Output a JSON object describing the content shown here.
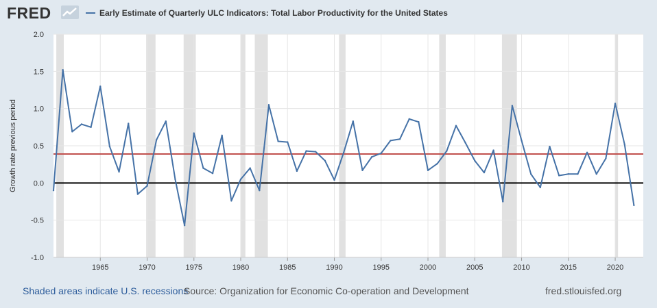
{
  "header": {
    "logo_text": "FRED",
    "legend_label": "Early Estimate of Quarterly ULC Indicators: Total Labor Productivity for the United States"
  },
  "footer": {
    "recession_note": "Shaded areas indicate U.S. recessions",
    "source": "Source: Organization for Economic Co-operation and Development",
    "site": "fred.stlouisfed.org"
  },
  "colors": {
    "series": "#4572a7",
    "reference_line": "#c0504d",
    "zero_line": "#000000",
    "recession": "#e1e1e1",
    "plot_bg": "#ffffff"
  },
  "chart_data": {
    "type": "line",
    "title": "Early Estimate of Quarterly ULC Indicators: Total Labor Productivity for the United States",
    "xlabel": "",
    "ylabel": "Growth rate previous period",
    "xlim": [
      1960,
      2023
    ],
    "ylim": [
      -1.0,
      2.0
    ],
    "x_ticks": [
      1965,
      1970,
      1975,
      1980,
      1985,
      1990,
      1995,
      2000,
      2005,
      2010,
      2015,
      2020
    ],
    "y_ticks": [
      -1.0,
      -0.5,
      0.0,
      0.5,
      1.0,
      1.5,
      2.0
    ],
    "y_tick_labels": [
      "-1.0",
      "-0.5",
      "0.0",
      "0.5",
      "1.0",
      "1.5",
      "2.0"
    ],
    "reference_line": 0.39,
    "zero_line": 0,
    "recessions": [
      [
        1960.3,
        1961.1
      ],
      [
        1969.9,
        1970.9
      ],
      [
        1973.9,
        1975.2
      ],
      [
        1980.0,
        1980.5
      ],
      [
        1981.5,
        1982.9
      ],
      [
        1990.5,
        1991.2
      ],
      [
        2001.2,
        2001.9
      ],
      [
        2007.9,
        2009.5
      ],
      [
        2020.0,
        2020.3
      ]
    ],
    "series": [
      {
        "name": "Early Estimate of Quarterly ULC Indicators: Total Labor Productivity for the United States",
        "x": [
          1960,
          1961,
          1962,
          1963,
          1964,
          1965,
          1966,
          1967,
          1968,
          1969,
          1970,
          1971,
          1972,
          1973,
          1974,
          1975,
          1976,
          1977,
          1978,
          1979,
          1980,
          1981,
          1982,
          1983,
          1984,
          1985,
          1986,
          1987,
          1988,
          1989,
          1990,
          1991,
          1992,
          1993,
          1994,
          1995,
          1996,
          1997,
          1998,
          1999,
          2000,
          2001,
          2002,
          2003,
          2004,
          2005,
          2006,
          2007,
          2008,
          2009,
          2010,
          2011,
          2012,
          2013,
          2014,
          2015,
          2016,
          2017,
          2018,
          2019,
          2020,
          2021,
          2022
        ],
        "y": [
          -0.1,
          1.52,
          0.69,
          0.79,
          0.75,
          1.3,
          0.49,
          0.15,
          0.8,
          -0.15,
          -0.04,
          0.58,
          0.83,
          0.05,
          -0.57,
          0.67,
          0.2,
          0.13,
          0.64,
          -0.24,
          0.05,
          0.2,
          -0.1,
          1.05,
          0.56,
          0.55,
          0.16,
          0.43,
          0.42,
          0.3,
          0.04,
          0.41,
          0.83,
          0.17,
          0.35,
          0.4,
          0.57,
          0.59,
          0.86,
          0.82,
          0.17,
          0.26,
          0.43,
          0.77,
          0.54,
          0.3,
          0.14,
          0.44,
          -0.25,
          1.04,
          0.57,
          0.12,
          -0.06,
          0.49,
          0.1,
          0.12,
          0.12,
          0.41,
          0.12,
          0.33,
          1.07,
          0.52,
          -0.3
        ]
      }
    ]
  }
}
